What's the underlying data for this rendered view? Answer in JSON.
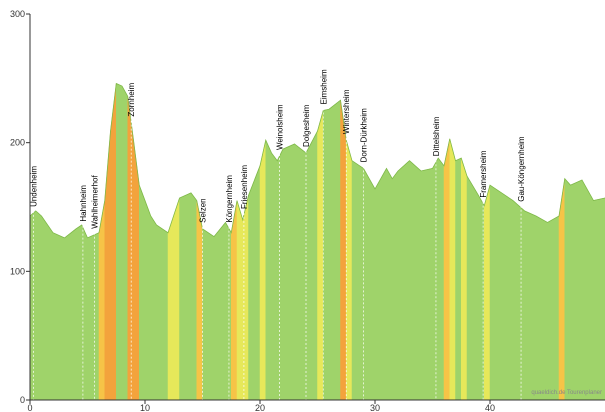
{
  "chart_data": {
    "type": "area",
    "x": [
      0,
      0.5,
      1,
      2,
      3,
      4,
      4.5,
      5,
      6,
      6.5,
      7,
      7.5,
      8,
      8.5,
      9,
      9.5,
      10,
      10.5,
      11,
      12,
      13,
      14,
      14.5,
      15,
      16,
      17,
      17.5,
      18,
      18.5,
      19,
      20,
      20.5,
      21,
      21.5,
      22,
      23,
      24,
      25,
      25.5,
      26,
      27,
      27.5,
      28,
      29,
      30,
      31,
      31.5,
      32,
      33,
      34,
      35,
      35.5,
      36,
      36.5,
      37,
      37.5,
      38,
      39,
      39.5,
      40,
      41,
      42,
      43,
      44,
      45,
      46,
      46.5,
      47,
      48,
      49,
      50
    ],
    "values": [
      143,
      147,
      143,
      130,
      126,
      133,
      136,
      126,
      130,
      155,
      209,
      246,
      244,
      236,
      202,
      167,
      155,
      143,
      136,
      130,
      157,
      161,
      155,
      133,
      127,
      138,
      130,
      155,
      140,
      159,
      182,
      202,
      192,
      186,
      195,
      199,
      192,
      209,
      225,
      226,
      233,
      202,
      186,
      180,
      164,
      180,
      172,
      178,
      186,
      178,
      180,
      188,
      182,
      203,
      186,
      188,
      174,
      159,
      151,
      167,
      161,
      155,
      147,
      143,
      138,
      143,
      172,
      167,
      171,
      155,
      157
    ],
    "color": "#9fd36a",
    "xlim": [
      0,
      50
    ],
    "ylim": [
      0,
      300
    ],
    "xticks": [
      0,
      10,
      20,
      30,
      40
    ],
    "yticks": [
      0,
      100,
      200,
      300
    ],
    "towns": [
      {
        "name": "Undenheim",
        "km": 0.3
      },
      {
        "name": "Hahnheim",
        "km": 4.6
      },
      {
        "name": "Wahlheimerhof",
        "km": 5.6
      },
      {
        "name": "Zornheim",
        "km": 8.8
      },
      {
        "name": "Selzen",
        "km": 15
      },
      {
        "name": "Köngernheim",
        "km": 17.3
      },
      {
        "name": "Friesenheim",
        "km": 18.6
      },
      {
        "name": "Weinolsheim",
        "km": 21.7
      },
      {
        "name": "Dolgesheim",
        "km": 24
      },
      {
        "name": "Eimsheim",
        "km": 25.5
      },
      {
        "name": "Wintersheim",
        "km": 27.5
      },
      {
        "name": "Dorn-Dürkheim",
        "km": 29
      },
      {
        "name": "Dittelsheim",
        "km": 35.3
      },
      {
        "name": "Framersheim",
        "km": 39.4
      },
      {
        "name": "Gau-Köngernheim",
        "km": 42.7
      }
    ],
    "watermark": "quaeldich.de Tourenplaner"
  }
}
